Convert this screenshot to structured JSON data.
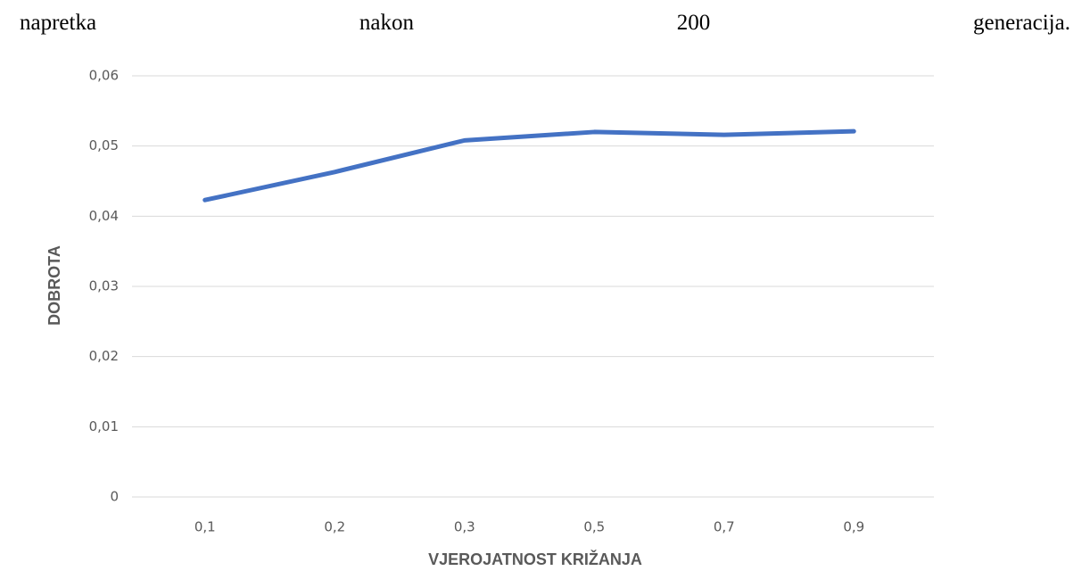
{
  "text": [
    "napretka",
    "nakon",
    "200",
    "generacija."
  ],
  "chart_data": {
    "type": "line",
    "x_label": "VJEROJATNOST KRIŽANJA",
    "y_label": "DOBROTA",
    "categories": [
      "0,1",
      "0,2",
      "0,3",
      "0,5",
      "0,7",
      "0,9"
    ],
    "series": [
      {
        "color": "#4472c4",
        "values": [
          0.0423,
          0.0463,
          0.0508,
          0.052,
          0.0516,
          0.0521
        ]
      }
    ],
    "ylim": [
      0,
      0.06
    ],
    "yticks": [
      0,
      {
        "value": 0.01,
        "label": "0,01"
      },
      {
        "value": 0.02,
        "label": "0,02"
      },
      {
        "value": 0.03,
        "label": "0,03"
      },
      {
        "value": 0.04,
        "label": "0,04"
      },
      {
        "value": 0.05,
        "label": "0,05"
      },
      {
        "value": 0.06,
        "label": "0,06"
      }
    ],
    "grid": true
  }
}
